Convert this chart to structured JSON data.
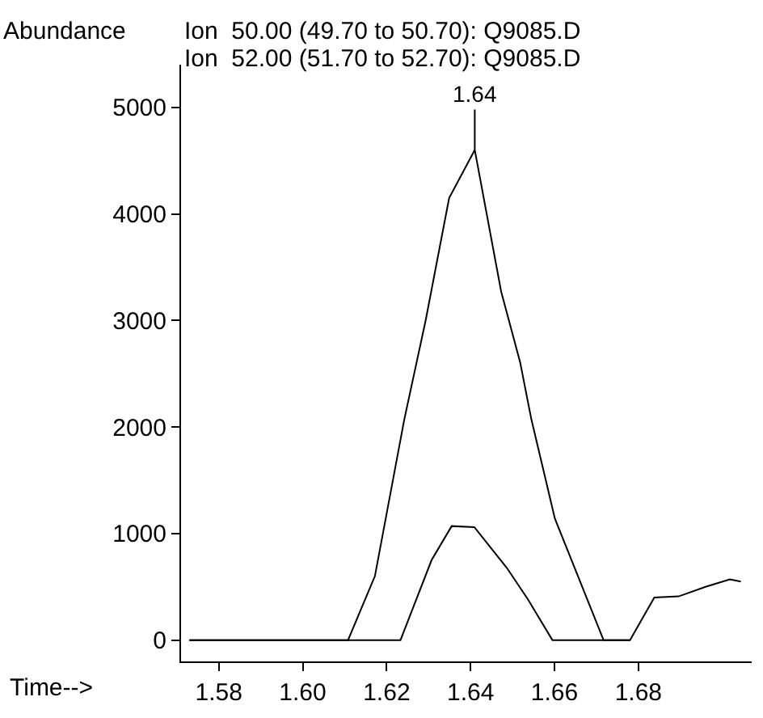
{
  "chart_data": {
    "type": "line",
    "xlabel": "Time-->",
    "ylabel": "Abundance",
    "annotations": [
      "Ion  50.00 (49.70 to 50.70): Q9085.D",
      "Ion  52.00 (51.70 to 52.70): Q9085.D",
      {
        "text": "1.64",
        "x": 1.641,
        "y": 4600
      }
    ],
    "series": [
      {
        "color": "#000000",
        "x": [
          1.573,
          1.6108,
          1.6172,
          1.6242,
          1.6293,
          1.6349,
          1.641,
          1.6473,
          1.6518,
          1.6545,
          1.6601,
          1.6717,
          1.678
        ],
        "values": [
          0,
          0,
          600,
          2070,
          3000,
          4150,
          4600,
          3270,
          2610,
          2070,
          1140,
          0,
          0
        ]
      },
      {
        "color": "#000000",
        "x": [
          1.573,
          1.6233,
          1.6307,
          1.6355,
          1.6409,
          1.6486,
          1.6537,
          1.6595,
          1.678,
          1.6838,
          1.6896,
          1.696,
          1.7018,
          1.7044
        ],
        "values": [
          0,
          0,
          750,
          1070,
          1060,
          680,
          380,
          0,
          0,
          400,
          410,
          500,
          570,
          550
        ]
      }
    ],
    "xlim": [
      1.571,
      1.707
    ],
    "xticks": [
      {
        "value": 1.58,
        "label": "1.58"
      },
      {
        "value": 1.6,
        "label": "1.60"
      },
      {
        "value": 1.62,
        "label": "1.62"
      },
      {
        "value": 1.64,
        "label": "1.64"
      },
      {
        "value": 1.66,
        "label": "1.66"
      },
      {
        "value": 1.68,
        "label": "1.68"
      }
    ],
    "ylim": [
      -200,
      5400
    ],
    "yticks": [
      0,
      1000,
      2000,
      3000,
      4000,
      5000
    ],
    "marker": "none",
    "line_style": "solid"
  }
}
